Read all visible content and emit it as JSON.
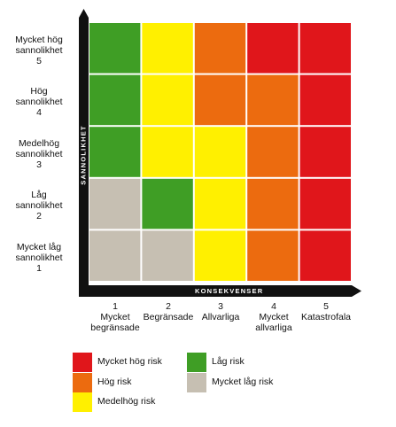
{
  "axes": {
    "y_title": "SANNOLIKHET",
    "x_title": "KONSEKVENSER"
  },
  "colors": {
    "very_high": "#e0161b",
    "high": "#ec6b0f",
    "medium_high": "#fff000",
    "low": "#3f9e25",
    "very_low": "#c6bfb2"
  },
  "rows": [
    {
      "label": "Mycket hög\nsannolikhet\n5",
      "cells": [
        "low",
        "medium_high",
        "high",
        "very_high",
        "very_high"
      ]
    },
    {
      "label": "Hög\nsannolikhet\n4",
      "cells": [
        "low",
        "medium_high",
        "high",
        "high",
        "very_high"
      ]
    },
    {
      "label": "Medelhög\nsannolikhet\n3",
      "cells": [
        "low",
        "medium_high",
        "medium_high",
        "high",
        "very_high"
      ]
    },
    {
      "label": "Låg\nsannolikhet\n2",
      "cells": [
        "very_low",
        "low",
        "medium_high",
        "high",
        "very_high"
      ]
    },
    {
      "label": "Mycket låg\nsannolikhet\n1",
      "cells": [
        "very_low",
        "very_low",
        "medium_high",
        "high",
        "very_high"
      ]
    }
  ],
  "columns": [
    {
      "label": "1\nMycket\nbegränsade"
    },
    {
      "label": "2\nBegränsade"
    },
    {
      "label": "3\nAllvarliga"
    },
    {
      "label": "4\nMycket\nallvarliga"
    },
    {
      "label": "5\nKatastrofala"
    }
  ],
  "legend": [
    {
      "key": "very_high",
      "label": "Mycket hög risk"
    },
    {
      "key": "high",
      "label": "Hög risk"
    },
    {
      "key": "medium_high",
      "label": "Medelhög risk"
    },
    {
      "key": "low",
      "label": "Låg risk"
    },
    {
      "key": "very_low",
      "label": "Mycket låg risk"
    }
  ]
}
